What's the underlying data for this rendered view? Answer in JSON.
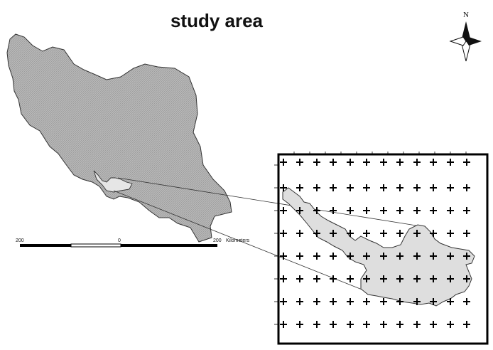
{
  "map": {
    "title": "study area",
    "north_label": "N",
    "scale_bar": {
      "left_label": "200",
      "mid_label": "0",
      "right_label": "200",
      "unit_label": "Kilometers"
    },
    "colors": {
      "country_fill": "#b8b8b8",
      "study_area_fill": "#dedede",
      "outline": "#333333",
      "frame": "#000000"
    },
    "icons": [
      "north-arrow-icon",
      "grid-cross-icon"
    ]
  }
}
